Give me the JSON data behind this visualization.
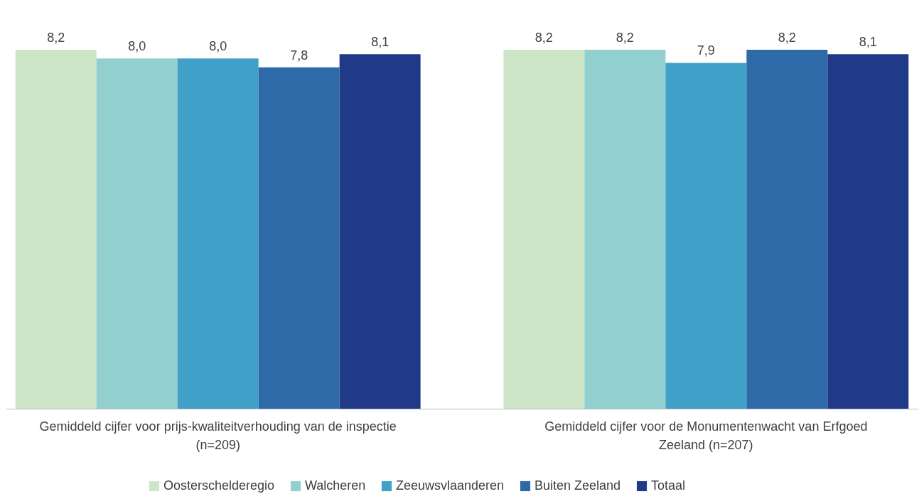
{
  "chart_data": {
    "type": "bar",
    "categories": [
      "Gemiddeld cijfer voor prijs-kwaliteitverhouding van de inspectie\n(n=209)",
      "Gemiddeld cijfer voor de Monumentenwacht van Erfgoed\nZeeland (n=207)"
    ],
    "series": [
      {
        "name": "Oosterschelderegio",
        "color": "#cde6c8",
        "values": [
          8.2,
          8.2
        ],
        "value_labels": [
          "8,2",
          "8,2"
        ]
      },
      {
        "name": "Walcheren",
        "color": "#92d0d0",
        "values": [
          8.0,
          8.2
        ],
        "value_labels": [
          "8,0",
          "8,2"
        ]
      },
      {
        "name": "Zeeuwsvlaanderen",
        "color": "#41a0c8",
        "values": [
          8.0,
          7.9
        ],
        "value_labels": [
          "8,0",
          "7,9"
        ]
      },
      {
        "name": "Buiten Zeeland",
        "color": "#2e6aa8",
        "values": [
          7.8,
          8.2
        ],
        "value_labels": [
          "7,8",
          "8,2"
        ]
      },
      {
        "name": "Totaal",
        "color": "#213a87",
        "values": [
          8.1,
          8.1
        ],
        "value_labels": [
          "8,1",
          "8,1"
        ]
      }
    ],
    "legend": "bottom",
    "grid": false,
    "tick_labels": "x"
  }
}
